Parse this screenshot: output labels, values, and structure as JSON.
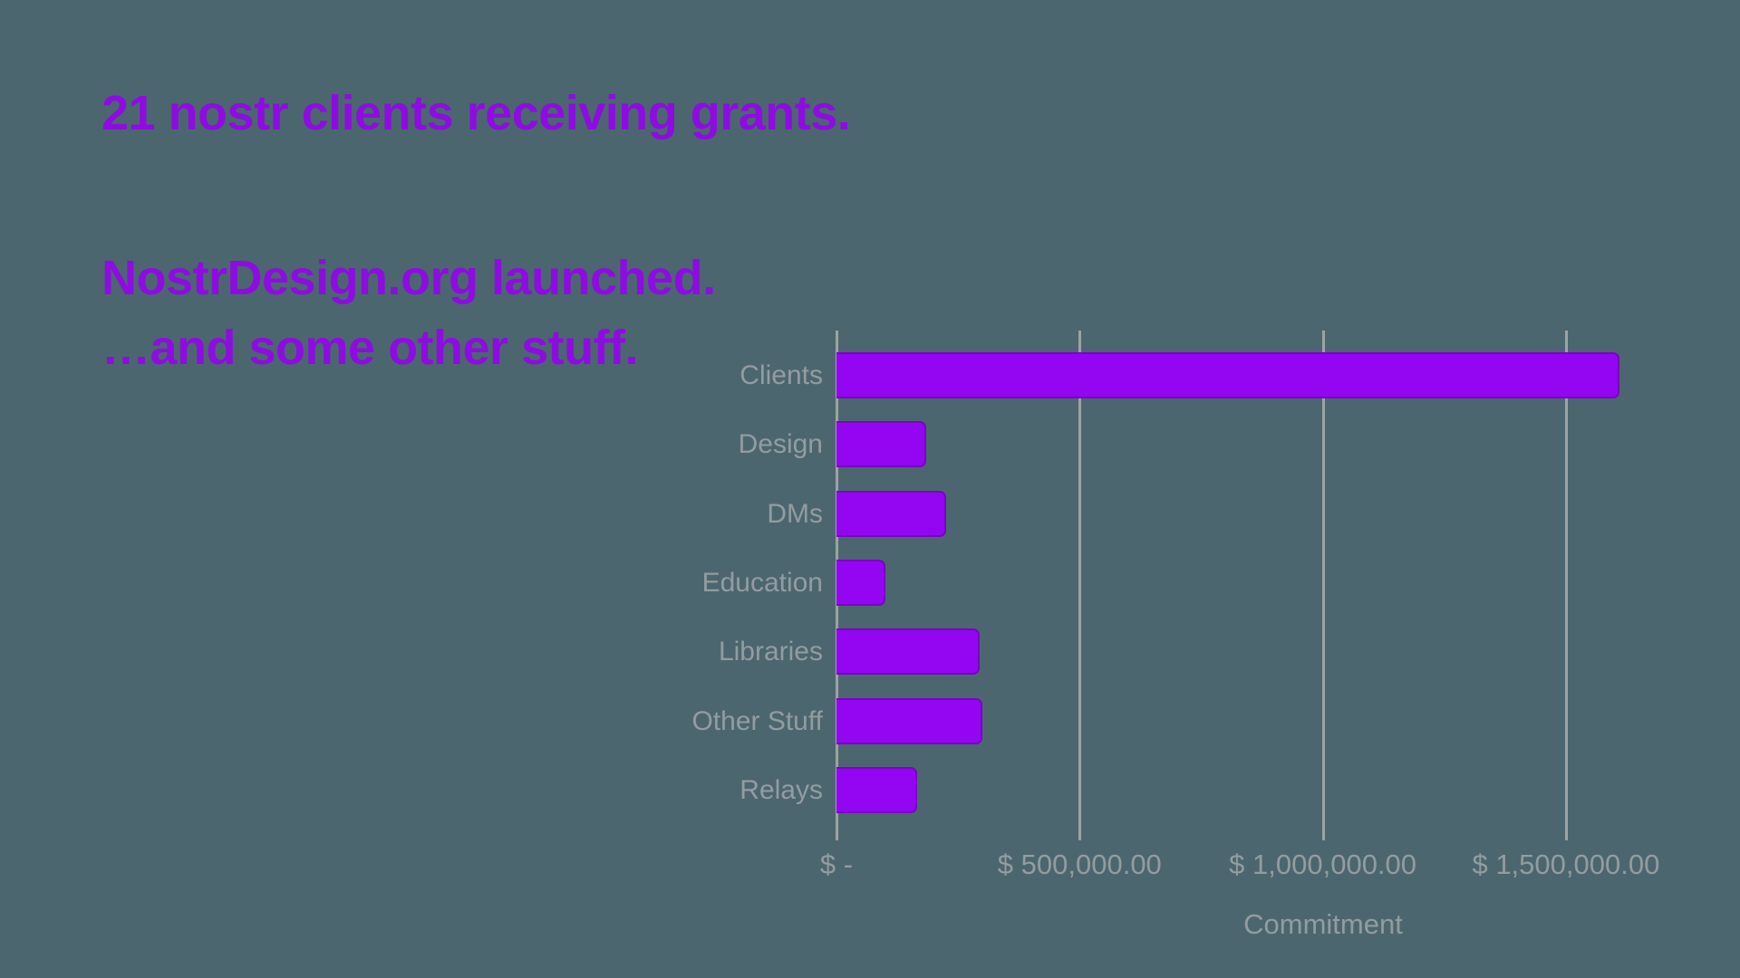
{
  "headings": {
    "line1": "21 nostr clients receiving grants.",
    "line2": "NostrDesign.org launched.",
    "line3": "…and some other stuff."
  },
  "colors": {
    "background": "#4C666F",
    "heading_purple": "#8E0CE2",
    "bar_fill": "#9406F2",
    "bar_border": "#7A03C4",
    "label_gray": "#939C9F",
    "gridline_gray": "#9CA3A3"
  },
  "chart_data": {
    "type": "bar",
    "orientation": "horizontal",
    "title": "",
    "categories": [
      "Clients",
      "Design",
      "DMs",
      "Education",
      "Libraries",
      "Other Stuff",
      "Relays"
    ],
    "values": [
      1610000,
      185000,
      225000,
      100000,
      295000,
      300000,
      165000
    ],
    "xlabel": "Commitment",
    "ylabel": "",
    "xticks": [
      0,
      500000,
      1000000,
      1500000
    ],
    "xtick_labels": [
      "$ -",
      "$ 500,000.00",
      "$ 1,000,000.00",
      "$ 1,500,000.00"
    ],
    "xlim": [
      0,
      1675000
    ],
    "grid": true,
    "legend": "none"
  }
}
